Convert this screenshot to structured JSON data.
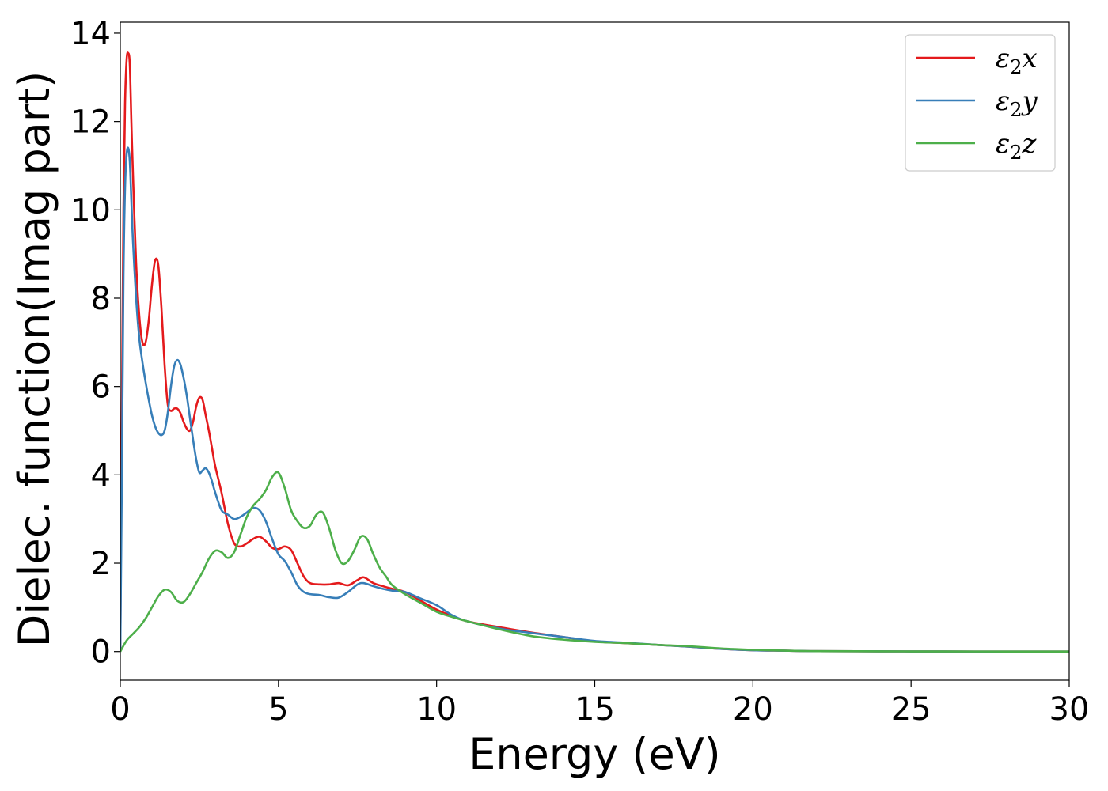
{
  "chart_data": {
    "type": "line",
    "xlabel": "Energy (eV)",
    "ylabel": "Dielec. function(Imag part)",
    "xlim": [
      0,
      30
    ],
    "ylim": [
      -0.65,
      14.25
    ],
    "xticks": [
      0,
      5,
      10,
      15,
      20,
      25,
      30
    ],
    "yticks": [
      0,
      2,
      4,
      6,
      8,
      10,
      12,
      14
    ],
    "grid": false,
    "legend_position": "top-right",
    "series": [
      {
        "name": "ε₂x",
        "label_base": "ε",
        "label_sub": "2",
        "label_var": "x",
        "color": "#e41a1c",
        "x": [
          0,
          0.05,
          0.1,
          0.15,
          0.2,
          0.25,
          0.3,
          0.35,
          0.4,
          0.5,
          0.6,
          0.7,
          0.8,
          0.9,
          1.0,
          1.1,
          1.2,
          1.3,
          1.4,
          1.5,
          1.6,
          1.7,
          1.8,
          1.9,
          2.0,
          2.1,
          2.2,
          2.3,
          2.4,
          2.5,
          2.6,
          2.7,
          2.8,
          2.9,
          3.0,
          3.2,
          3.4,
          3.6,
          3.8,
          4.0,
          4.2,
          4.4,
          4.6,
          4.8,
          5.0,
          5.2,
          5.4,
          5.6,
          5.8,
          6.0,
          6.3,
          6.6,
          6.9,
          7.2,
          7.5,
          7.7,
          8.0,
          8.3,
          8.6,
          9.0,
          9.5,
          10.0,
          10.5,
          11.0,
          12.0,
          13.0,
          14.0,
          15.0,
          16.0,
          17.0,
          18.0,
          19.0,
          20.0,
          21.0,
          22.0,
          24.0,
          26.0,
          28.0,
          30.0
        ],
        "values": [
          0,
          5.5,
          10.0,
          12.4,
          13.4,
          13.55,
          13.3,
          12.0,
          10.8,
          8.8,
          7.6,
          7.0,
          7.0,
          7.5,
          8.3,
          8.85,
          8.75,
          7.8,
          6.5,
          5.6,
          5.45,
          5.5,
          5.5,
          5.4,
          5.2,
          5.05,
          5.0,
          5.2,
          5.55,
          5.75,
          5.7,
          5.35,
          5.0,
          4.6,
          4.2,
          3.6,
          2.9,
          2.45,
          2.38,
          2.45,
          2.55,
          2.6,
          2.5,
          2.35,
          2.32,
          2.38,
          2.3,
          2.0,
          1.7,
          1.55,
          1.52,
          1.52,
          1.55,
          1.5,
          1.62,
          1.68,
          1.55,
          1.48,
          1.42,
          1.35,
          1.15,
          0.95,
          0.8,
          0.68,
          0.55,
          0.43,
          0.33,
          0.23,
          0.19,
          0.15,
          0.11,
          0.06,
          0.03,
          0.02,
          0.01,
          0.005,
          0.002,
          0.001,
          0
        ]
      },
      {
        "name": "ε₂y",
        "label_base": "ε",
        "label_sub": "2",
        "label_var": "y",
        "color": "#377eb8",
        "x": [
          0,
          0.05,
          0.1,
          0.15,
          0.2,
          0.25,
          0.3,
          0.35,
          0.4,
          0.5,
          0.6,
          0.7,
          0.8,
          0.9,
          1.0,
          1.1,
          1.2,
          1.3,
          1.4,
          1.5,
          1.6,
          1.7,
          1.8,
          1.9,
          2.0,
          2.1,
          2.2,
          2.3,
          2.4,
          2.5,
          2.6,
          2.7,
          2.8,
          2.9,
          3.0,
          3.2,
          3.4,
          3.6,
          3.8,
          4.0,
          4.2,
          4.4,
          4.6,
          4.8,
          5.0,
          5.2,
          5.4,
          5.6,
          5.8,
          6.0,
          6.3,
          6.6,
          6.9,
          7.2,
          7.5,
          7.7,
          8.0,
          8.3,
          8.6,
          9.0,
          9.5,
          10.0,
          10.5,
          11.0,
          12.0,
          13.0,
          14.0,
          15.0,
          16.0,
          17.0,
          18.0,
          19.0,
          20.0,
          21.0,
          22.0,
          24.0,
          26.0,
          28.0,
          30.0
        ],
        "values": [
          0,
          4.0,
          8.5,
          10.5,
          11.25,
          11.4,
          11.1,
          10.2,
          9.3,
          8.0,
          7.1,
          6.55,
          6.1,
          5.7,
          5.35,
          5.1,
          4.95,
          4.9,
          5.0,
          5.4,
          6.0,
          6.45,
          6.6,
          6.5,
          6.2,
          5.8,
          5.3,
          4.8,
          4.35,
          4.05,
          4.1,
          4.15,
          4.05,
          3.85,
          3.6,
          3.2,
          3.1,
          3.0,
          3.05,
          3.15,
          3.25,
          3.2,
          2.95,
          2.55,
          2.2,
          2.05,
          1.8,
          1.5,
          1.35,
          1.3,
          1.28,
          1.23,
          1.22,
          1.35,
          1.52,
          1.55,
          1.48,
          1.42,
          1.38,
          1.35,
          1.2,
          1.05,
          0.82,
          0.68,
          0.52,
          0.42,
          0.33,
          0.24,
          0.2,
          0.15,
          0.11,
          0.06,
          0.03,
          0.02,
          0.01,
          0.005,
          0.002,
          0.001,
          0
        ]
      },
      {
        "name": "ε₂z",
        "label_base": "ε",
        "label_sub": "2",
        "label_var": "z",
        "color": "#4daf4a",
        "x": [
          0,
          0.2,
          0.4,
          0.6,
          0.8,
          1.0,
          1.2,
          1.4,
          1.6,
          1.8,
          2.0,
          2.2,
          2.4,
          2.6,
          2.8,
          3.0,
          3.2,
          3.4,
          3.6,
          3.8,
          4.0,
          4.2,
          4.4,
          4.6,
          4.8,
          5.0,
          5.2,
          5.4,
          5.6,
          5.8,
          6.0,
          6.2,
          6.4,
          6.6,
          6.8,
          7.0,
          7.2,
          7.4,
          7.6,
          7.8,
          8.0,
          8.2,
          8.4,
          8.6,
          9.0,
          9.5,
          10.0,
          10.5,
          11.0,
          12.0,
          13.0,
          14.0,
          15.0,
          16.0,
          17.0,
          18.0,
          19.0,
          20.0,
          21.0,
          22.0,
          24.0,
          26.0,
          28.0,
          30.0
        ],
        "values": [
          0,
          0.25,
          0.4,
          0.55,
          0.75,
          1.0,
          1.25,
          1.4,
          1.35,
          1.15,
          1.12,
          1.3,
          1.55,
          1.8,
          2.1,
          2.28,
          2.25,
          2.12,
          2.25,
          2.65,
          3.05,
          3.3,
          3.45,
          3.65,
          3.95,
          4.05,
          3.7,
          3.2,
          2.95,
          2.8,
          2.85,
          3.1,
          3.15,
          2.8,
          2.3,
          2.0,
          2.05,
          2.3,
          2.6,
          2.55,
          2.2,
          1.9,
          1.7,
          1.5,
          1.3,
          1.1,
          0.9,
          0.78,
          0.68,
          0.5,
          0.35,
          0.27,
          0.22,
          0.19,
          0.15,
          0.12,
          0.07,
          0.04,
          0.02,
          0.01,
          0.005,
          0.002,
          0.001,
          0
        ]
      }
    ]
  }
}
